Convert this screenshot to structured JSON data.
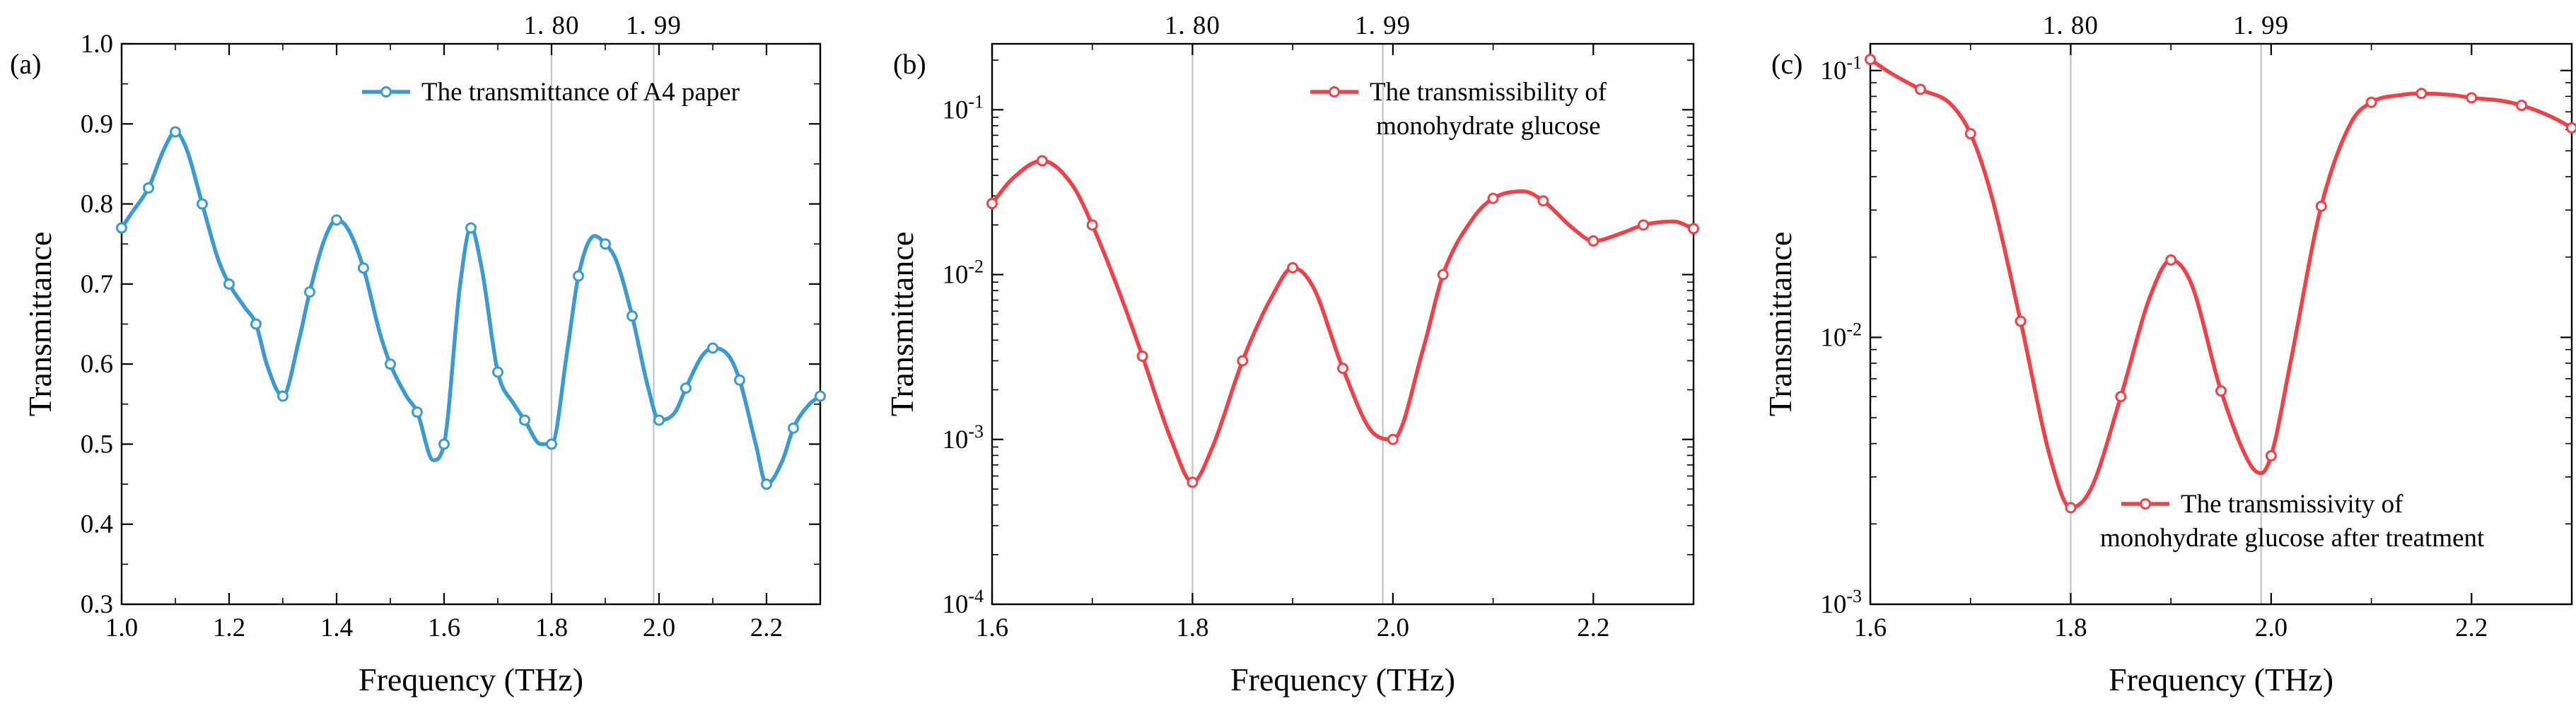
{
  "chart_data": [
    {
      "type": "line",
      "panel_label": "(a)",
      "scale": "linear",
      "xlabel": "Frequency (THz)",
      "ylabel": "Transmittance",
      "xlim": [
        1.0,
        2.3
      ],
      "ylim": [
        0.3,
        1.0
      ],
      "xticks": [
        1.0,
        1.2,
        1.4,
        1.6,
        1.8,
        2.0,
        2.2
      ],
      "xtick_labels": [
        "1.0",
        "1.2",
        "1.4",
        "1.6",
        "1.8",
        "2.0",
        "2.2"
      ],
      "yticks": [
        0.3,
        0.4,
        0.5,
        0.6,
        0.7,
        0.8,
        0.9,
        1.0
      ],
      "ytick_labels": [
        "0.3",
        "0.4",
        "0.5",
        "0.6",
        "0.7",
        "0.8",
        "0.9",
        "1.0"
      ],
      "ref_lines": [
        1.8,
        1.99
      ],
      "ref_labels": [
        "1. 80",
        "1. 99"
      ],
      "legend_position": "top-right",
      "color": "#3a9bd2",
      "series": [
        {
          "name": "The transmittance of A4 paper",
          "legend_lines": [
            "The transmittance of A4 paper"
          ],
          "x": [
            1.0,
            1.05,
            1.1,
            1.15,
            1.2,
            1.25,
            1.3,
            1.35,
            1.4,
            1.45,
            1.5,
            1.55,
            1.6,
            1.65,
            1.7,
            1.75,
            1.8,
            1.85,
            1.9,
            1.95,
            2.0,
            2.05,
            2.1,
            2.15,
            2.2,
            2.25,
            2.3
          ],
          "y": [
            0.77,
            0.82,
            0.89,
            0.8,
            0.7,
            0.65,
            0.56,
            0.69,
            0.78,
            0.72,
            0.6,
            0.54,
            0.5,
            0.77,
            0.59,
            0.53,
            0.5,
            0.71,
            0.75,
            0.66,
            0.53,
            0.57,
            0.62,
            0.58,
            0.45,
            0.52,
            0.56
          ],
          "curve_x": [
            1.0,
            1.02,
            1.05,
            1.08,
            1.1,
            1.12,
            1.15,
            1.18,
            1.2,
            1.23,
            1.25,
            1.27,
            1.3,
            1.33,
            1.35,
            1.38,
            1.4,
            1.42,
            1.45,
            1.48,
            1.5,
            1.53,
            1.55,
            1.58,
            1.6,
            1.63,
            1.65,
            1.67,
            1.7,
            1.73,
            1.75,
            1.78,
            1.8,
            1.83,
            1.85,
            1.88,
            1.9,
            1.92,
            1.95,
            1.98,
            2.0,
            2.03,
            2.05,
            2.08,
            2.1,
            2.13,
            2.15,
            2.18,
            2.2,
            2.23,
            2.25,
            2.28,
            2.3
          ],
          "curve_y": [
            0.77,
            0.79,
            0.82,
            0.87,
            0.89,
            0.87,
            0.8,
            0.73,
            0.7,
            0.67,
            0.65,
            0.6,
            0.56,
            0.63,
            0.69,
            0.76,
            0.78,
            0.77,
            0.72,
            0.64,
            0.6,
            0.56,
            0.54,
            0.48,
            0.5,
            0.7,
            0.77,
            0.72,
            0.59,
            0.55,
            0.53,
            0.5,
            0.5,
            0.62,
            0.71,
            0.76,
            0.75,
            0.73,
            0.66,
            0.57,
            0.53,
            0.54,
            0.57,
            0.61,
            0.62,
            0.61,
            0.58,
            0.5,
            0.45,
            0.48,
            0.52,
            0.55,
            0.56
          ]
        }
      ]
    },
    {
      "type": "line",
      "panel_label": "(b)",
      "scale": "log",
      "xlabel": "Frequency (THz)",
      "ylabel": "Transmittance",
      "xlim": [
        1.6,
        2.3
      ],
      "ylim_exp": [
        -4,
        -0.6
      ],
      "xticks": [
        1.6,
        1.8,
        2.0,
        2.2
      ],
      "xtick_labels": [
        "1.6",
        "1.8",
        "2.0",
        "2.2"
      ],
      "ytick_exps": [
        -4,
        -3,
        -2,
        -1
      ],
      "ytick_bases": [
        "10",
        "10",
        "10",
        "10"
      ],
      "ytick_sups": [
        "-4",
        "-3",
        "-2",
        "-1"
      ],
      "ref_lines": [
        1.8,
        1.99
      ],
      "ref_labels": [
        "1. 80",
        "1. 99"
      ],
      "legend_position": "top-right",
      "color": "#f04048",
      "series": [
        {
          "name": "The transmissibility of monohydrate glucose",
          "legend_lines": [
            "The transmissibility of",
            "monohydrate glucose"
          ],
          "x": [
            1.6,
            1.65,
            1.7,
            1.75,
            1.8,
            1.85,
            1.9,
            1.95,
            2.0,
            2.05,
            2.1,
            2.15,
            2.2,
            2.25,
            2.3
          ],
          "y": [
            0.027,
            0.049,
            0.02,
            0.0032,
            0.00055,
            0.003,
            0.011,
            0.0027,
            0.001,
            0.01,
            0.029,
            0.028,
            0.016,
            0.02,
            0.019
          ],
          "curve_x": [
            1.6,
            1.62,
            1.65,
            1.68,
            1.7,
            1.73,
            1.75,
            1.78,
            1.8,
            1.82,
            1.85,
            1.88,
            1.9,
            1.92,
            1.95,
            1.98,
            2.0,
            2.03,
            2.05,
            2.08,
            2.1,
            2.13,
            2.15,
            2.18,
            2.2,
            2.23,
            2.25,
            2.28,
            2.3
          ],
          "curve_y": [
            0.027,
            0.038,
            0.049,
            0.035,
            0.02,
            0.007,
            0.0032,
            0.00095,
            0.00055,
            0.0009,
            0.003,
            0.0075,
            0.011,
            0.0085,
            0.0027,
            0.0011,
            0.001,
            0.0035,
            0.01,
            0.022,
            0.029,
            0.032,
            0.028,
            0.019,
            0.016,
            0.018,
            0.02,
            0.021,
            0.019
          ]
        }
      ]
    },
    {
      "type": "line",
      "panel_label": "(c)",
      "scale": "log",
      "xlabel": "Frequency (THz)",
      "ylabel": "Transmittance",
      "xlim": [
        1.6,
        2.3
      ],
      "ylim_exp": [
        -3,
        -0.9
      ],
      "xticks": [
        1.6,
        1.8,
        2.0,
        2.2
      ],
      "xtick_labels": [
        "1.6",
        "1.8",
        "2.0",
        "2.2"
      ],
      "ytick_exps": [
        -3,
        -2,
        -1
      ],
      "ytick_bases": [
        "10",
        "10",
        "10"
      ],
      "ytick_sups": [
        "-3",
        "-2",
        "-1"
      ],
      "ref_lines": [
        1.8,
        1.99
      ],
      "ref_labels": [
        "1. 80",
        "1. 99"
      ],
      "legend_position": "bottom-right",
      "color": "#f04048",
      "series": [
        {
          "name": "The transmissivity of monohydrate glucose after treatment",
          "legend_lines": [
            "The transmissivity of",
            "monohydrate glucose after treatment"
          ],
          "x": [
            1.6,
            1.65,
            1.7,
            1.75,
            1.8,
            1.85,
            1.9,
            1.95,
            2.0,
            2.05,
            2.1,
            2.15,
            2.2,
            2.25,
            2.3
          ],
          "y": [
            0.11,
            0.085,
            0.058,
            0.0115,
            0.0023,
            0.006,
            0.0195,
            0.0063,
            0.0036,
            0.031,
            0.076,
            0.082,
            0.079,
            0.074,
            0.061
          ],
          "curve_x": [
            1.6,
            1.62,
            1.65,
            1.68,
            1.7,
            1.72,
            1.75,
            1.78,
            1.8,
            1.82,
            1.85,
            1.88,
            1.9,
            1.92,
            1.95,
            1.98,
            1.99,
            2.0,
            2.02,
            2.05,
            2.08,
            2.1,
            2.13,
            2.15,
            2.18,
            2.2,
            2.23,
            2.25,
            2.28,
            2.3
          ],
          "curve_y": [
            0.11,
            0.098,
            0.085,
            0.075,
            0.058,
            0.035,
            0.0115,
            0.0035,
            0.0023,
            0.0027,
            0.006,
            0.0145,
            0.0195,
            0.016,
            0.0063,
            0.0033,
            0.0031,
            0.0036,
            0.0083,
            0.031,
            0.064,
            0.076,
            0.081,
            0.082,
            0.081,
            0.079,
            0.077,
            0.074,
            0.067,
            0.061
          ]
        }
      ]
    }
  ]
}
